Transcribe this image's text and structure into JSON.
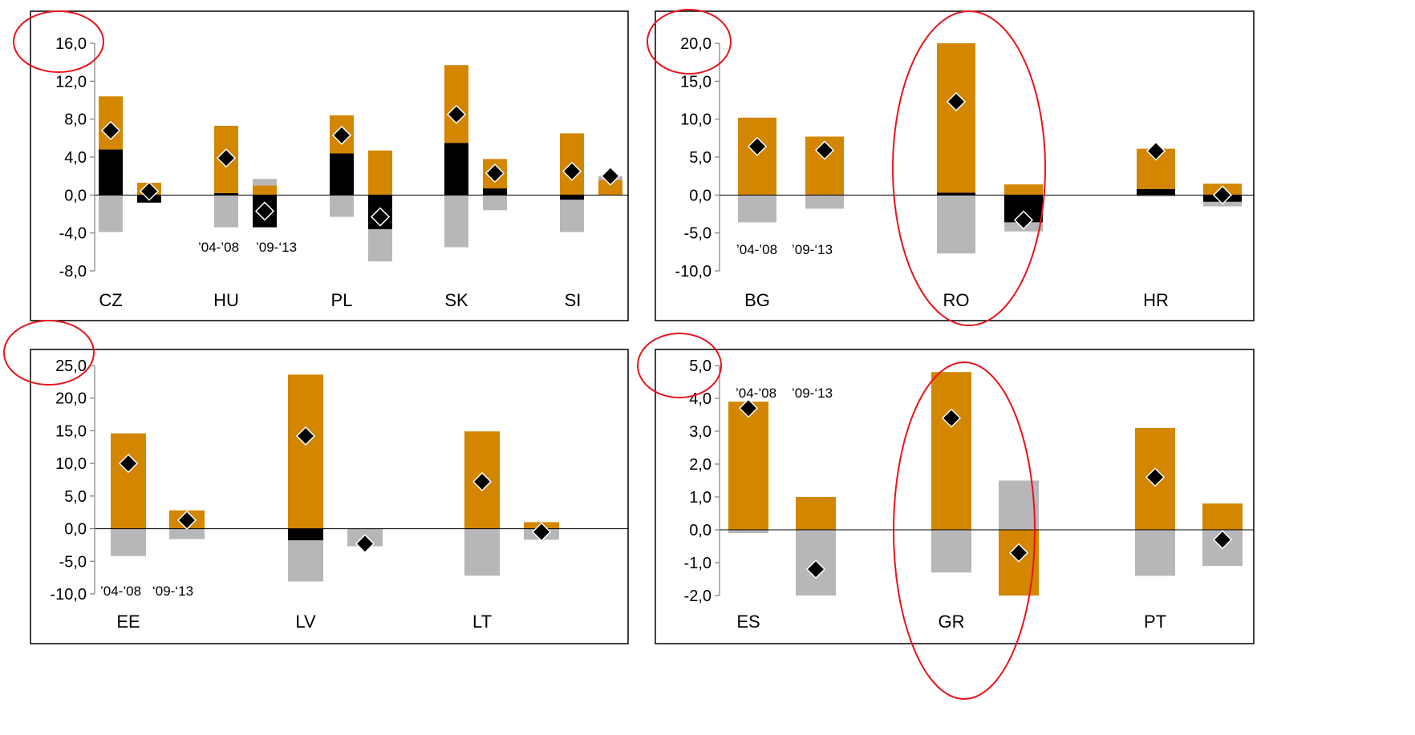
{
  "colors": {
    "orange": "#d38600",
    "black": "#000000",
    "gray": "#b7b7b9",
    "circle": "#e8131c",
    "axis": "#7f7f7f"
  },
  "chart_data": [
    {
      "type": "bar",
      "stacked": true,
      "ylim": [
        -8.0,
        16.0
      ],
      "yticks": [
        "16,0",
        "12,0",
        "8,0",
        "4,0",
        "0,0",
        "-4,0",
        "-8,0"
      ],
      "yticks_values": [
        16,
        12,
        8,
        4,
        0,
        -4,
        -8
      ],
      "countries": [
        "CZ",
        "HU",
        "PL",
        "SK",
        "SI"
      ],
      "period_labels": [
        "’04-’08",
        "’09-‘13"
      ],
      "bars": [
        {
          "country": "CZ",
          "period": "'04-'08",
          "orange": 5.6,
          "black": 4.8,
          "gray": -3.9,
          "diamond": 6.8
        },
        {
          "country": "CZ",
          "period": "'09-'13",
          "orange": 1.3,
          "black": -0.8,
          "gray": 0.0,
          "diamond": 0.4
        },
        {
          "country": "HU",
          "period": "'04-'08",
          "orange": 7.1,
          "black": 0.2,
          "gray": -3.4,
          "diamond": 3.9
        },
        {
          "country": "HU",
          "period": "'09-'13",
          "orange": 1.0,
          "black": -3.4,
          "gray": 0.7,
          "diamond": -1.7
        },
        {
          "country": "PL",
          "period": "'04-'08",
          "orange": 4.0,
          "black": 4.4,
          "gray": -2.3,
          "diamond": 6.3
        },
        {
          "country": "PL",
          "period": "'09-'13",
          "orange": 4.7,
          "black": -3.6,
          "gray": -3.4,
          "diamond": -2.3
        },
        {
          "country": "SK",
          "period": "'04-'08",
          "orange": 8.2,
          "black": 5.5,
          "gray": -5.5,
          "diamond": 8.5
        },
        {
          "country": "SK",
          "period": "'09-'13",
          "orange": 3.1,
          "black": 0.7,
          "gray": -1.6,
          "diamond": 2.3
        },
        {
          "country": "SI",
          "period": "'04-'08",
          "orange": 6.5,
          "black": -0.5,
          "gray": -3.4,
          "diamond": 2.5
        },
        {
          "country": "SI",
          "period": "'09-'13",
          "orange": 1.6,
          "black": 0.0,
          "gray": 0.4,
          "diamond": 2.0
        }
      ]
    },
    {
      "type": "bar",
      "stacked": true,
      "ylim": [
        -10.0,
        20.0
      ],
      "yticks": [
        "20,0",
        "15,0",
        "10,0",
        "5,0",
        "0,0",
        "-5,0",
        "-10,0"
      ],
      "yticks_values": [
        20,
        15,
        10,
        5,
        0,
        -5,
        -10
      ],
      "countries": [
        "BG",
        "RO",
        "HR"
      ],
      "period_labels": [
        "’04-’08",
        "’09-‘13"
      ],
      "bars": [
        {
          "country": "BG",
          "period": "'04-'08",
          "orange": 10.2,
          "black": 0.0,
          "gray": -3.6,
          "diamond": 6.4
        },
        {
          "country": "BG",
          "period": "'09-'13",
          "orange": 7.7,
          "black": 0.0,
          "gray": -1.8,
          "diamond": 5.9
        },
        {
          "country": "RO",
          "period": "'04-'08",
          "orange": 19.7,
          "black": 0.3,
          "gray": -7.7,
          "diamond": 12.3
        },
        {
          "country": "RO",
          "period": "'09-'13",
          "orange": 1.4,
          "black": -3.6,
          "gray": -1.2,
          "diamond": -3.3
        },
        {
          "country": "HR",
          "period": "'04-'08",
          "orange": 5.3,
          "black": 0.8,
          "gray": -0.2,
          "diamond": 5.8
        },
        {
          "country": "HR",
          "period": "'09-'13",
          "orange": 1.5,
          "black": -0.9,
          "gray": -0.6,
          "diamond": 0.0
        }
      ]
    },
    {
      "type": "bar",
      "stacked": true,
      "ylim": [
        -10.0,
        25.0
      ],
      "yticks": [
        "25,0",
        "20,0",
        "15,0",
        "10,0",
        "5,0",
        "0,0",
        "-5,0",
        "-10,0"
      ],
      "yticks_values": [
        25,
        20,
        15,
        10,
        5,
        0,
        -5,
        -10
      ],
      "countries": [
        "EE",
        "LV",
        "LT"
      ],
      "period_labels": [
        "’04-’08",
        "‘09-‘13"
      ],
      "bars": [
        {
          "country": "EE",
          "period": "'04-'08",
          "orange": 14.6,
          "black": 0.0,
          "gray": -4.2,
          "diamond": 10.0
        },
        {
          "country": "EE",
          "period": "'09-'13",
          "orange": 2.8,
          "black": 0.0,
          "gray": -1.6,
          "diamond": 1.3
        },
        {
          "country": "LV",
          "period": "'04-'08",
          "orange": 23.6,
          "black": -1.8,
          "gray": -6.3,
          "diamond": 14.2
        },
        {
          "country": "LV",
          "period": "'09-'13",
          "orange": 0.0,
          "black": 0.0,
          "gray": -2.7,
          "diamond": -2.3
        },
        {
          "country": "LT",
          "period": "'04-'08",
          "orange": 14.9,
          "black": 0.0,
          "gray": -7.2,
          "diamond": 7.2
        },
        {
          "country": "LT",
          "period": "'09-'13",
          "orange": 1.0,
          "black": 0.0,
          "gray": -1.7,
          "diamond": -0.5
        }
      ]
    },
    {
      "type": "bar",
      "stacked": true,
      "ylim": [
        -2.0,
        5.0
      ],
      "yticks": [
        "5,0",
        "4,0",
        "3,0",
        "2,0",
        "1,0",
        "0,0",
        "-1,0",
        "-2,0"
      ],
      "yticks_values": [
        5,
        4,
        3,
        2,
        1,
        0,
        -1,
        -2
      ],
      "countries": [
        "ES",
        "GR",
        "PT"
      ],
      "period_labels": [
        "’04-’08",
        "’09-‘13"
      ],
      "bars": [
        {
          "country": "ES",
          "period": "'04-'08",
          "orange": 3.9,
          "black": 0.0,
          "gray": -0.1,
          "diamond": 3.7
        },
        {
          "country": "ES",
          "period": "'09-'13",
          "orange": 1.0,
          "black": 0.0,
          "gray": -2.0,
          "diamond": -1.2
        },
        {
          "country": "GR",
          "period": "'04-'08",
          "orange": 4.8,
          "black": 0.0,
          "gray": -1.3,
          "diamond": 3.4
        },
        {
          "country": "GR",
          "period": "'09-'13",
          "orange": -2.0,
          "black": 0.0,
          "gray": 1.5,
          "diamond": -0.7
        },
        {
          "country": "PT",
          "period": "'04-'08",
          "orange": 3.1,
          "black": 0.0,
          "gray": -1.4,
          "diamond": 1.6
        },
        {
          "country": "PT",
          "period": "'09-'13",
          "orange": 0.8,
          "black": 0.0,
          "gray": -1.1,
          "diamond": -0.3
        }
      ]
    }
  ]
}
